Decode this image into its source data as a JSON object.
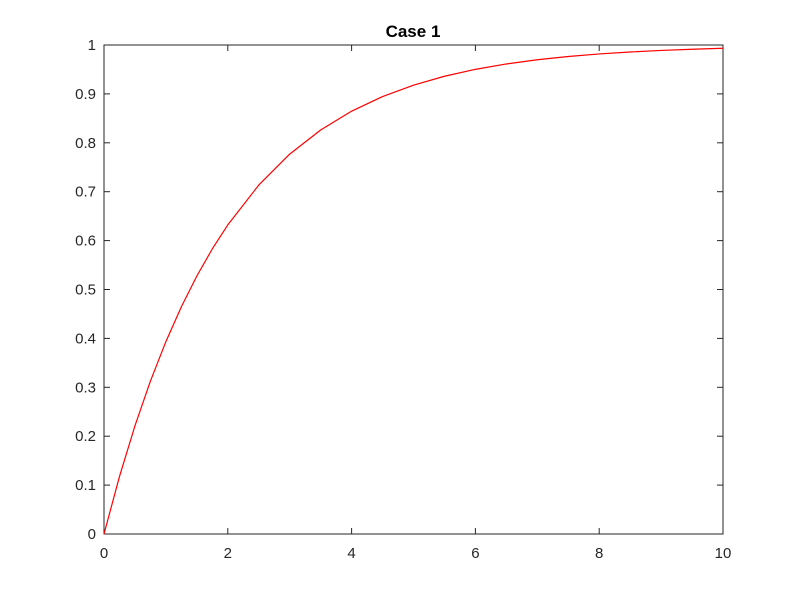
{
  "chart_data": {
    "type": "line",
    "title": "Case 1",
    "xlabel": "",
    "ylabel": "",
    "xlim": [
      0,
      10
    ],
    "ylim": [
      0,
      1
    ],
    "x_ticks": [
      0,
      2,
      4,
      6,
      8,
      10
    ],
    "y_ticks": [
      0,
      0.1,
      0.2,
      0.3,
      0.4,
      0.5,
      0.6,
      0.7,
      0.8,
      0.9,
      1
    ],
    "x_tick_labels": [
      "0",
      "2",
      "4",
      "6",
      "8",
      "10"
    ],
    "y_tick_labels": [
      "0",
      "0.1",
      "0.2",
      "0.3",
      "0.4",
      "0.5",
      "0.6",
      "0.7",
      "0.8",
      "0.9",
      "1"
    ],
    "grid": false,
    "legend": "none",
    "series": [
      {
        "color": "#ff0000",
        "x": [
          0,
          0.25,
          0.5,
          0.75,
          1,
          1.25,
          1.5,
          1.75,
          2,
          2.5,
          3,
          3.5,
          4,
          4.5,
          5,
          5.5,
          6,
          6.5,
          7,
          7.5,
          8,
          8.5,
          9,
          9.5,
          10
        ],
        "y": [
          0,
          0.1175,
          0.2212,
          0.3127,
          0.3935,
          0.4647,
          0.5276,
          0.5831,
          0.6321,
          0.7135,
          0.7769,
          0.8262,
          0.8647,
          0.8946,
          0.9179,
          0.9361,
          0.9502,
          0.9612,
          0.9698,
          0.9765,
          0.9817,
          0.9857,
          0.9889,
          0.9913,
          0.9933
        ]
      }
    ]
  }
}
